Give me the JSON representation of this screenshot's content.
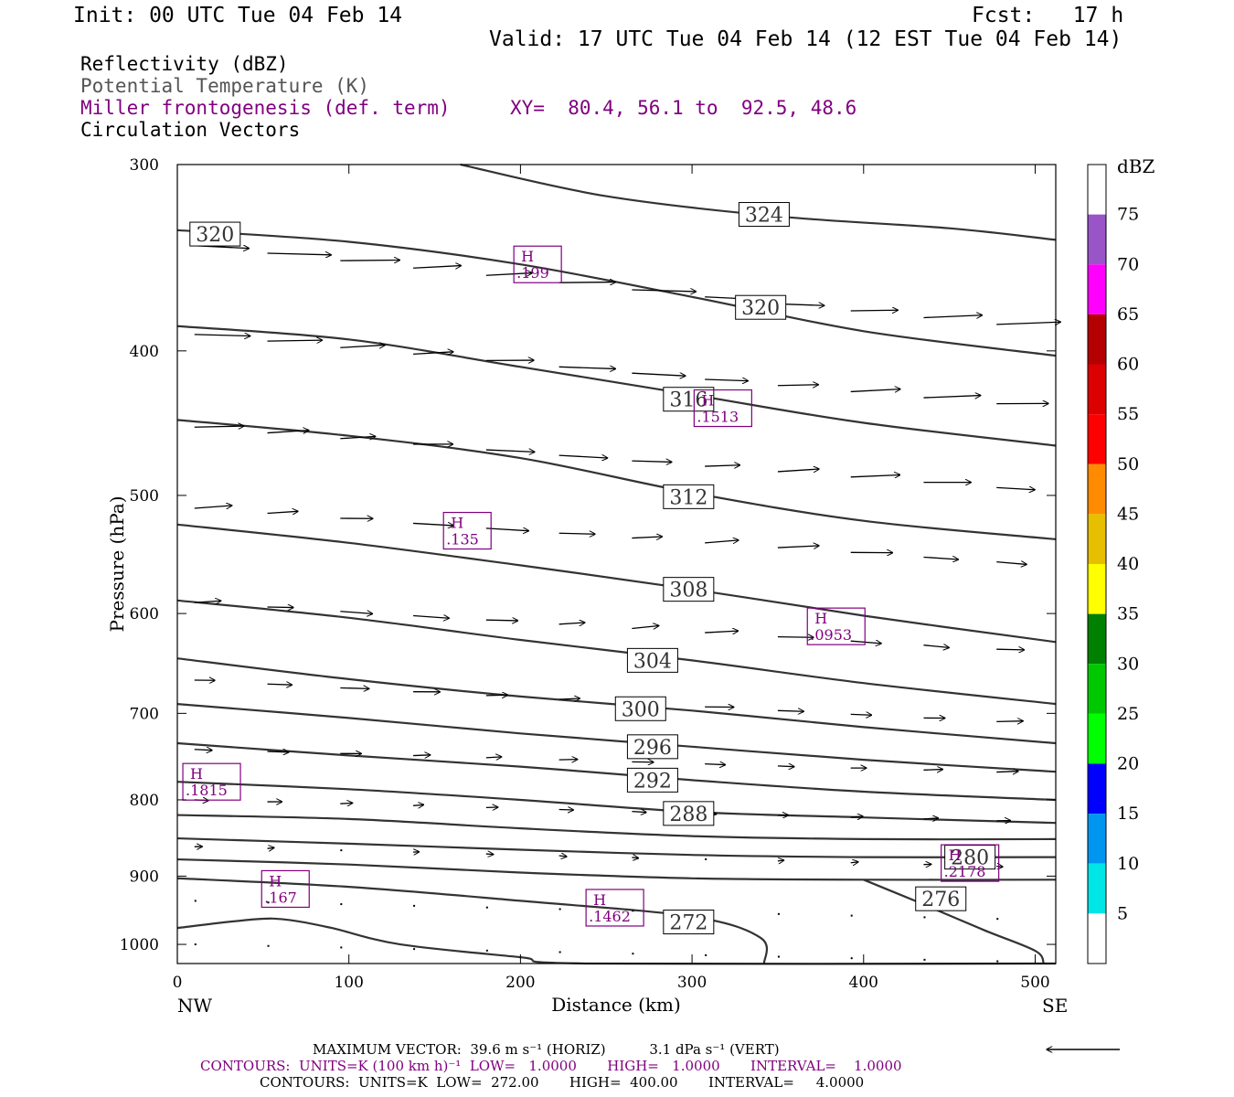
{
  "header": {
    "init": "Init: 00 UTC Tue 04 Feb 14",
    "fcst": "Fcst:   17 h",
    "valid": "Valid: 17 UTC Tue 04 Feb 14 (12 EST Tue 04 Feb 14)"
  },
  "legend": {
    "line1": "Reflectivity (dBZ)",
    "line2": "Potential Temperature (K)",
    "line3": "Miller frontogenesis (def. term)",
    "xy": "XY=  80.4, 56.1 to  92.5, 48.6",
    "line4": "Circulation Vectors"
  },
  "colors": {
    "purple": "#80007f",
    "contour": "#333333"
  },
  "footer": {
    "max_vector": "MAXIMUM VECTOR:  39.6 m s⁻¹ (HORIZ)          3.1 dPa s⁻¹ (VERT)",
    "contours_fronto": "CONTOURS:  UNITS=K (100 km h)⁻¹  LOW=   1.0000       HIGH=   1.0000       INTERVAL=    1.0000",
    "contours_theta": "CONTOURS:  UNITS=K  LOW=  272.00       HIGH=  400.00       INTERVAL=     4.0000"
  },
  "chart_data": {
    "type": "line",
    "title": "",
    "xlabel": "Distance (km)",
    "ylabel": "Pressure (hPa)",
    "xlim": [
      0,
      512
    ],
    "ylim": [
      1030,
      300
    ],
    "y_scale": "log",
    "grid": false,
    "x_ticks": [
      0,
      100,
      200,
      300,
      400,
      500
    ],
    "y_ticks": [
      300,
      400,
      500,
      600,
      700,
      800,
      900,
      1000
    ],
    "x_end_labels": {
      "left": "NW",
      "right": "SE"
    },
    "isentropes": [
      {
        "label": "324",
        "label_at": [
          342,
          324
        ],
        "points": [
          [
            165,
            300
          ],
          [
            250,
            315
          ],
          [
            350,
            325
          ],
          [
            450,
            331
          ],
          [
            512,
            337
          ]
        ]
      },
      {
        "label": "320",
        "label_at": [
          340,
          374
        ],
        "points": [
          [
            0,
            332
          ],
          [
            100,
            338
          ],
          [
            200,
            350
          ],
          [
            300,
            368
          ],
          [
            400,
            388
          ],
          [
            512,
            403
          ]
        ]
      },
      {
        "label": "320",
        "label_at": [
          22,
          334
        ],
        "points": []
      },
      {
        "label": "316",
        "label_at": [
          298,
          431
        ],
        "points": [
          [
            0,
            385
          ],
          [
            100,
            393
          ],
          [
            200,
            410
          ],
          [
            300,
            428
          ],
          [
            400,
            447
          ],
          [
            512,
            463
          ]
        ]
      },
      {
        "label": "312",
        "label_at": [
          298,
          501
        ],
        "points": [
          [
            0,
            445
          ],
          [
            100,
            456
          ],
          [
            200,
            472
          ],
          [
            300,
            498
          ],
          [
            400,
            520
          ],
          [
            512,
            535
          ]
        ]
      },
      {
        "label": "308",
        "label_at": [
          298,
          578
        ],
        "points": [
          [
            0,
            523
          ],
          [
            100,
            538
          ],
          [
            200,
            557
          ],
          [
            300,
            578
          ],
          [
            400,
            602
          ],
          [
            512,
            627
          ]
        ]
      },
      {
        "label": "304",
        "label_at": [
          277,
          645
        ],
        "points": [
          [
            0,
            588
          ],
          [
            100,
            604
          ],
          [
            200,
            625
          ],
          [
            300,
            645
          ],
          [
            400,
            668
          ],
          [
            512,
            690
          ]
        ]
      },
      {
        "label": "300",
        "label_at": [
          270,
          695
        ],
        "points": [
          [
            0,
            643
          ],
          [
            100,
            664
          ],
          [
            200,
            682
          ],
          [
            300,
            697
          ],
          [
            400,
            715
          ],
          [
            512,
            733
          ]
        ]
      },
      {
        "label": "296",
        "label_at": [
          277,
          737
        ],
        "points": [
          [
            0,
            690
          ],
          [
            100,
            705
          ],
          [
            200,
            722
          ],
          [
            300,
            737
          ],
          [
            400,
            752
          ],
          [
            512,
            766
          ]
        ]
      },
      {
        "label": "292",
        "label_at": [
          277,
          776
        ],
        "points": [
          [
            0,
            733
          ],
          [
            100,
            747
          ],
          [
            200,
            760
          ],
          [
            300,
            776
          ],
          [
            400,
            790
          ],
          [
            512,
            800
          ]
        ]
      },
      {
        "label": "288",
        "label_at": [
          298,
          817
        ],
        "points": [
          [
            0,
            778
          ],
          [
            100,
            787
          ],
          [
            200,
            800
          ],
          [
            300,
            815
          ],
          [
            400,
            822
          ],
          [
            512,
            829
          ]
        ]
      },
      {
        "label": "",
        "label_at": null,
        "points": [
          [
            0,
            819
          ],
          [
            100,
            824
          ],
          [
            200,
            836
          ],
          [
            300,
            846
          ],
          [
            400,
            850
          ],
          [
            512,
            850
          ]
        ]
      },
      {
        "label": "280",
        "label_at": [
          462,
          874
        ],
        "points": [
          [
            0,
            849
          ],
          [
            100,
            856
          ],
          [
            200,
            864
          ],
          [
            300,
            871
          ],
          [
            400,
            874
          ],
          [
            512,
            874
          ]
        ]
      },
      {
        "label": "",
        "label_at": null,
        "points": [
          [
            0,
            877
          ],
          [
            100,
            884
          ],
          [
            200,
            895
          ],
          [
            300,
            903
          ],
          [
            400,
            905
          ],
          [
            512,
            905
          ]
        ]
      },
      {
        "label": "276",
        "label_at": [
          445,
          932
        ],
        "points": [
          [
            0,
            903
          ],
          [
            100,
            915
          ],
          [
            200,
            935
          ],
          [
            300,
            958
          ],
          [
            340,
            990
          ],
          [
            342,
            1030
          ]
        ]
      },
      {
        "label": "272",
        "label_at": [
          298,
          966
        ],
        "points": []
      },
      {
        "label": "",
        "label_at": null,
        "points": [
          [
            0,
            975
          ],
          [
            45,
            962
          ],
          [
            65,
            963
          ],
          [
            90,
            975
          ],
          [
            130,
            1000
          ],
          [
            200,
            1020
          ],
          [
            240,
            1030
          ],
          [
            512,
            1030
          ]
        ]
      },
      {
        "label": "",
        "label_at": null,
        "points": [
          [
            400,
            905
          ],
          [
            430,
            935
          ],
          [
            470,
            978
          ],
          [
            500,
            1010
          ],
          [
            505,
            1030
          ]
        ]
      }
    ],
    "frontogenesis_maxima": [
      {
        "label": "H",
        "value": ".199",
        "at": [
          210,
          350
        ]
      },
      {
        "label": "H",
        "value": ".1513",
        "at": [
          318,
          437
        ]
      },
      {
        "label": "H",
        "value": ".135",
        "at": [
          169,
          528
        ]
      },
      {
        "label": "H",
        "value": ".0953",
        "at": [
          384,
          612
        ]
      },
      {
        "label": "H",
        "value": ".1815",
        "at": [
          20,
          778
        ]
      },
      {
        "label": "H",
        "value": ".167",
        "at": [
          63,
          918
        ]
      },
      {
        "label": "H",
        "value": ".1462",
        "at": [
          255,
          945
        ]
      },
      {
        "label": "H",
        "value": ".2178",
        "at": [
          462,
          882
        ]
      }
    ],
    "colorbar": {
      "label": "dBZ",
      "levels": [
        "5",
        "10",
        "15",
        "20",
        "25",
        "30",
        "35",
        "40",
        "45",
        "50",
        "55",
        "60",
        "65",
        "70",
        "75"
      ],
      "colors": [
        "#ffffff",
        "#00e6e6",
        "#0096f0",
        "#0000ff",
        "#00ff00",
        "#00c800",
        "#008000",
        "#ffff00",
        "#e6c000",
        "#ff8c00",
        "#ff0000",
        "#dc0000",
        "#b40000",
        "#ff00ff",
        "#9955c8",
        "#ffffff"
      ]
    }
  }
}
